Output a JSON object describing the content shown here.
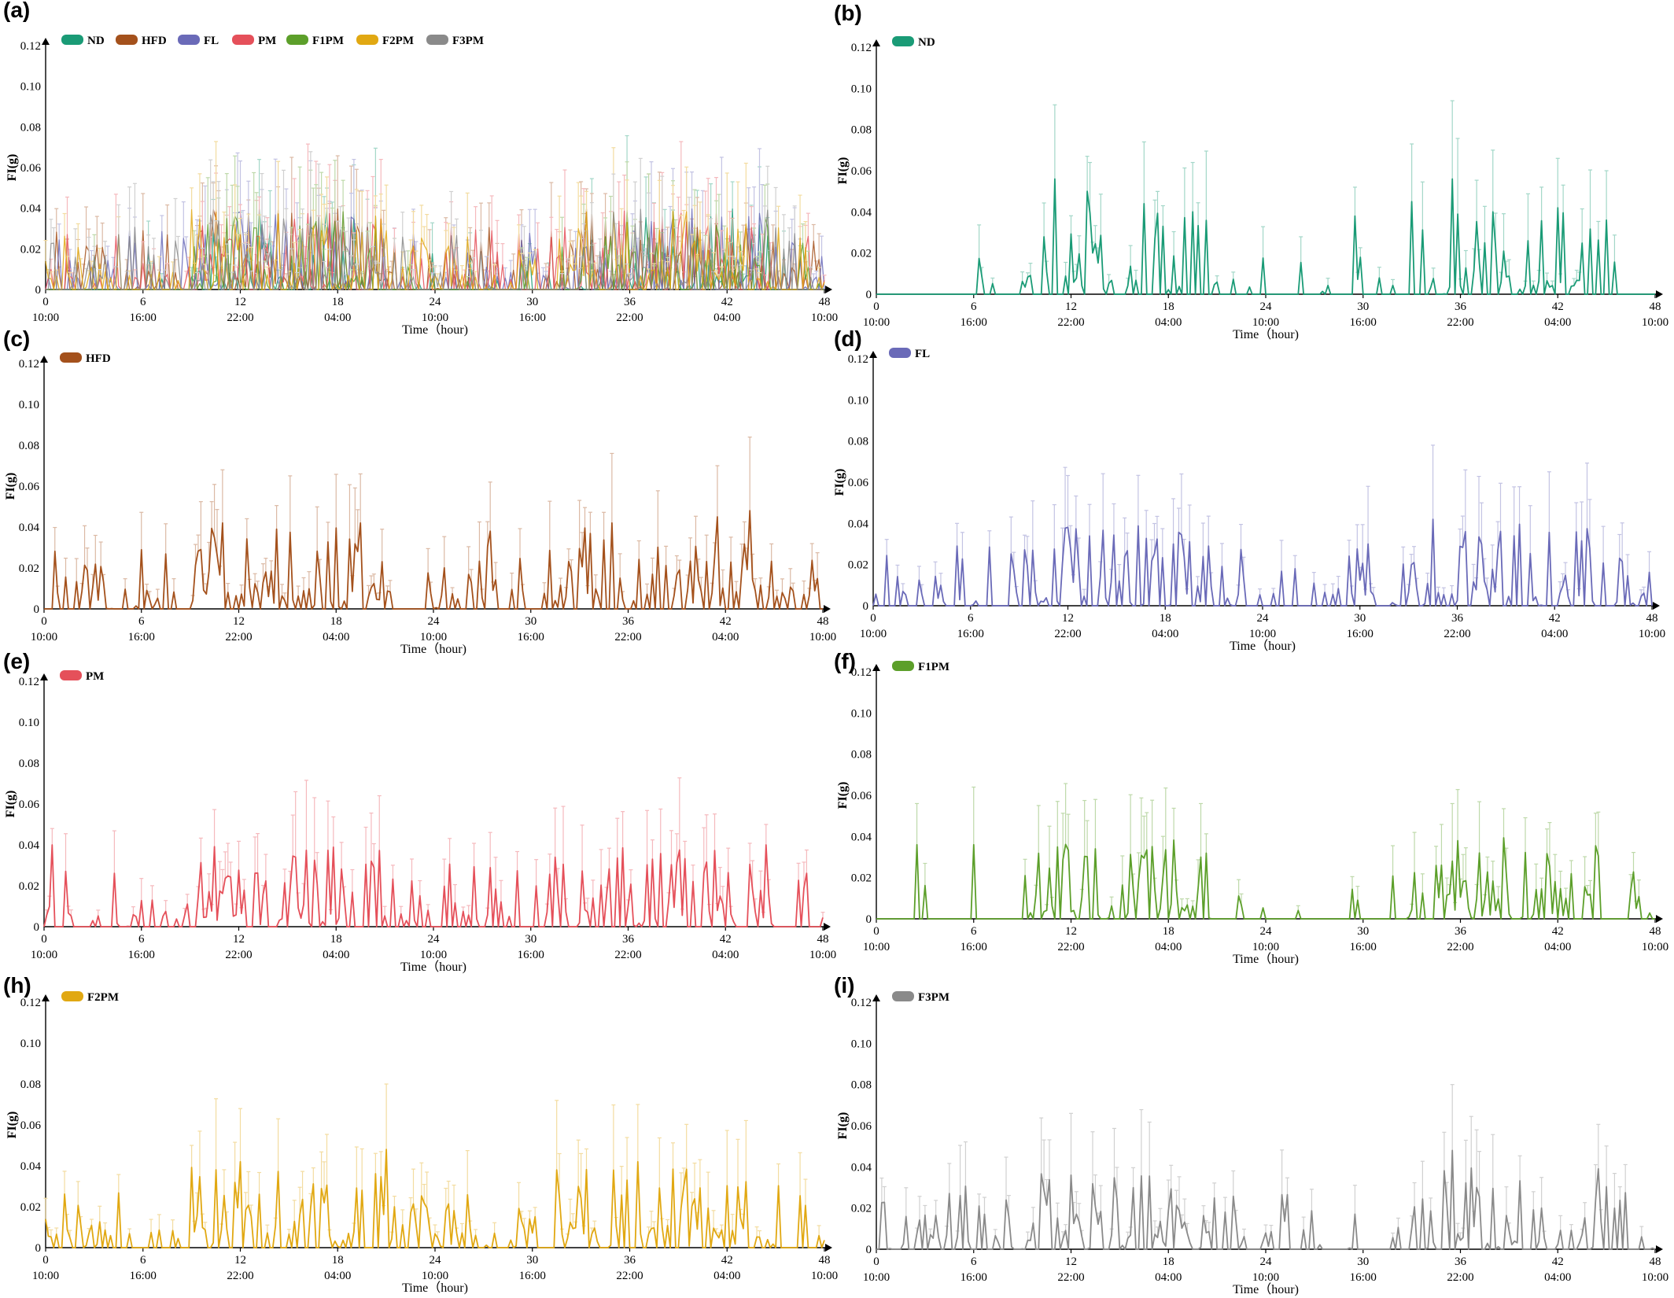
{
  "chart_data": [
    {
      "panel": "(a)",
      "type": "line",
      "title": "",
      "xlabel": "Time（hour)",
      "ylabel": "FI(g)",
      "ylim": [
        0,
        0.12
      ],
      "y_ticks": [
        "0",
        "0.02",
        "0.04",
        "0.06",
        "0.08",
        "0.10",
        "0.12"
      ],
      "x_ticks": [
        "0",
        "6",
        "12",
        "18",
        "24",
        "30",
        "36",
        "42",
        "48"
      ],
      "clock_ticks": [
        "10:00",
        "16:00",
        "22:00",
        "04:00",
        "10:00",
        "16:00",
        "22:00",
        "04:00",
        "10:00"
      ],
      "xlim": [
        0,
        48
      ],
      "legend": "top-left",
      "error_bars": true,
      "series": [
        {
          "name": "ND",
          "color": "#1a9b76",
          "key": "ND"
        },
        {
          "name": "HFD",
          "color": "#a4511c",
          "key": "HFD"
        },
        {
          "name": "FL",
          "color": "#6a6ab8",
          "key": "FL"
        },
        {
          "name": "PM",
          "color": "#e5505a",
          "key": "PM"
        },
        {
          "name": "F1PM",
          "color": "#5c9f2a",
          "key": "F1PM"
        },
        {
          "name": "F2PM",
          "color": "#e1a812",
          "key": "F2PM"
        },
        {
          "name": "F3PM",
          "color": "#8a8a8a",
          "key": "F3PM"
        }
      ]
    },
    {
      "panel": "(b)",
      "type": "line",
      "xlabel": "Time（hour)",
      "ylabel": "FI(g)",
      "ylim": [
        0,
        0.12
      ],
      "y_ticks": [
        "0",
        "0.02",
        "0.04",
        "0.06",
        "0.08",
        "0.10",
        "0.12"
      ],
      "x_ticks": [
        "0",
        "6",
        "12",
        "18",
        "24",
        "30",
        "36",
        "42",
        "48"
      ],
      "clock_ticks": [
        "10:00",
        "16:00",
        "22:00",
        "04:00",
        "10:00",
        "16:00",
        "22:00",
        "04:00",
        "10:00"
      ],
      "xlim": [
        0,
        48
      ],
      "legend": "top-left",
      "error_bars": true,
      "series": [
        {
          "name": "ND",
          "color": "#1a9b76",
          "key": "ND"
        }
      ],
      "peaks": [
        [
          11.0,
          0.056,
          0.092
        ],
        [
          13.0,
          0.05,
          0.067
        ],
        [
          16.5,
          0.044,
          0.074
        ],
        [
          19.5,
          0.04,
          0.064
        ],
        [
          29.5,
          0.038,
          0.052
        ],
        [
          33.0,
          0.045,
          0.073
        ],
        [
          35.5,
          0.056,
          0.094
        ],
        [
          38.0,
          0.04,
          0.07
        ],
        [
          42.0,
          0.042,
          0.066
        ],
        [
          45.0,
          0.036,
          0.06
        ]
      ]
    },
    {
      "panel": "(c)",
      "type": "line",
      "xlabel": "Time（hour)",
      "ylabel": "FI(g)",
      "ylim": [
        0,
        0.12
      ],
      "y_ticks": [
        "0",
        "0.02",
        "0.04",
        "0.06",
        "0.08",
        "0.10",
        "0.12"
      ],
      "x_ticks": [
        "0",
        "6",
        "12",
        "18",
        "24",
        "30",
        "36",
        "42",
        "48"
      ],
      "clock_ticks": [
        "10:00",
        "16:00",
        "22:00",
        "04:00",
        "10:00",
        "16:00",
        "22:00",
        "04:00",
        "10:00"
      ],
      "xlim": [
        0,
        48
      ],
      "legend": "top-left",
      "error_bars": true,
      "series": [
        {
          "name": "HFD",
          "color": "#a4511c",
          "key": "HFD"
        }
      ],
      "peaks": [
        [
          11.0,
          0.042,
          0.068
        ],
        [
          19.5,
          0.042,
          0.066
        ],
        [
          27.5,
          0.038,
          0.062
        ],
        [
          35.0,
          0.042,
          0.076
        ],
        [
          41.5,
          0.045,
          0.07
        ],
        [
          43.5,
          0.048,
          0.084
        ]
      ]
    },
    {
      "panel": "(d)",
      "type": "line",
      "xlabel": "Time（hour)",
      "ylabel": "FI(g)",
      "ylim": [
        0,
        0.12
      ],
      "y_ticks": [
        "0",
        "0.02",
        "0.04",
        "0.06",
        "0.08",
        "0.10",
        "0.12"
      ],
      "x_ticks": [
        "0",
        "6",
        "12",
        "18",
        "24",
        "30",
        "36",
        "42",
        "48"
      ],
      "clock_ticks": [
        "10:00",
        "16:00",
        "22:00",
        "04:00",
        "10:00",
        "16:00",
        "22:00",
        "04:00",
        "10:00"
      ],
      "xlim": [
        0,
        48
      ],
      "legend": "top-left",
      "error_bars": true,
      "series": [
        {
          "name": "FL",
          "color": "#6a6ab8",
          "key": "FL"
        }
      ],
      "peaks": [
        [
          18.5,
          0.03,
          0.052
        ],
        [
          30.5,
          0.03,
          0.058
        ],
        [
          34.5,
          0.042,
          0.078
        ],
        [
          36.5,
          0.036,
          0.066
        ],
        [
          37.5,
          0.03,
          0.05
        ]
      ]
    },
    {
      "panel": "(e)",
      "type": "line",
      "xlabel": "Time（hour)",
      "ylabel": "FI(g)",
      "ylim": [
        0,
        0.12
      ],
      "y_ticks": [
        "0",
        "0.02",
        "0.04",
        "0.06",
        "0.08",
        "0.10",
        "0.12"
      ],
      "x_ticks": [
        "0",
        "6",
        "12",
        "18",
        "24",
        "30",
        "36",
        "42",
        "48"
      ],
      "clock_ticks": [
        "10:00",
        "16:00",
        "22:00",
        "04:00",
        "10:00",
        "16:00",
        "22:00",
        "04:00",
        "10:00"
      ],
      "xlim": [
        0,
        48
      ],
      "legend": "top-left",
      "error_bars": true,
      "series": [
        {
          "name": "PM",
          "color": "#e5505a",
          "key": "PM"
        }
      ],
      "peaks": [
        [
          0.5,
          0.04,
          0.048
        ],
        [
          15.5,
          0.034,
          0.066
        ],
        [
          31.5,
          0.034,
          0.058
        ],
        [
          44.5,
          0.04,
          0.05
        ]
      ]
    },
    {
      "panel": "(f)",
      "type": "line",
      "xlabel": "Time（hour)",
      "ylabel": "FI(g)",
      "ylim": [
        0,
        0.12
      ],
      "y_ticks": [
        "0",
        "0.02",
        "0.04",
        "0.06",
        "0.08",
        "0.10",
        "0.12"
      ],
      "x_ticks": [
        "0",
        "6",
        "12",
        "18",
        "24",
        "30",
        "36",
        "42",
        "48"
      ],
      "clock_ticks": [
        "10:00",
        "16:00",
        "22:00",
        "04:00",
        "10:00",
        "16:00",
        "22:00",
        "04:00",
        "10:00"
      ],
      "xlim": [
        0,
        48
      ],
      "legend": "top-left",
      "error_bars": true,
      "series": [
        {
          "name": "F1PM",
          "color": "#5c9f2a",
          "key": "F1PM"
        }
      ],
      "peaks": [
        [
          2.5,
          0.036,
          0.056
        ],
        [
          6.0,
          0.036,
          0.064
        ],
        [
          13.5,
          0.034,
          0.058
        ],
        [
          20.0,
          0.03,
          0.056
        ],
        [
          35.5,
          0.028,
          0.056
        ]
      ]
    },
    {
      "panel": "(h)",
      "type": "line",
      "xlabel": "Time（hour)",
      "ylabel": "FI(g)",
      "ylim": [
        0,
        0.12
      ],
      "y_ticks": [
        "0",
        "0.02",
        "0.04",
        "0.06",
        "0.08",
        "0.10",
        "0.12"
      ],
      "x_ticks": [
        "0",
        "6",
        "12",
        "18",
        "24",
        "30",
        "36",
        "42",
        "48"
      ],
      "clock_ticks": [
        "10:00",
        "16:00",
        "22:00",
        "04:00",
        "10:00",
        "16:00",
        "22:00",
        "04:00",
        "10:00"
      ],
      "xlim": [
        0,
        48
      ],
      "legend": "top-left",
      "error_bars": true,
      "series": [
        {
          "name": "F2PM",
          "color": "#e1a812",
          "key": "F2PM"
        }
      ],
      "peaks": [
        [
          12.0,
          0.042,
          0.068
        ],
        [
          21.0,
          0.048,
          0.08
        ],
        [
          31.5,
          0.038,
          0.072
        ],
        [
          36.5,
          0.042,
          0.07
        ]
      ]
    },
    {
      "panel": "(i)",
      "type": "line",
      "xlabel": "Time（hour)",
      "ylabel": "FI(g)",
      "ylim": [
        0,
        0.12
      ],
      "y_ticks": [
        "0",
        "0.02",
        "0.04",
        "0.06",
        "0.08",
        "0.10",
        "0.12"
      ],
      "x_ticks": [
        "0",
        "6",
        "12",
        "18",
        "24",
        "30",
        "36",
        "42",
        "48"
      ],
      "clock_ticks": [
        "10:00",
        "16:00",
        "22:00",
        "04:00",
        "10:00",
        "16:00",
        "22:00",
        "04:00",
        "10:00"
      ],
      "xlim": [
        0,
        48
      ],
      "legend": "top-left",
      "error_bars": true,
      "series": [
        {
          "name": "F3PM",
          "color": "#8a8a8a",
          "key": "F3PM"
        }
      ],
      "peaks": [
        [
          12.0,
          0.036,
          0.066
        ],
        [
          35.5,
          0.048,
          0.08
        ],
        [
          37.0,
          0.03,
          0.058
        ]
      ]
    }
  ]
}
